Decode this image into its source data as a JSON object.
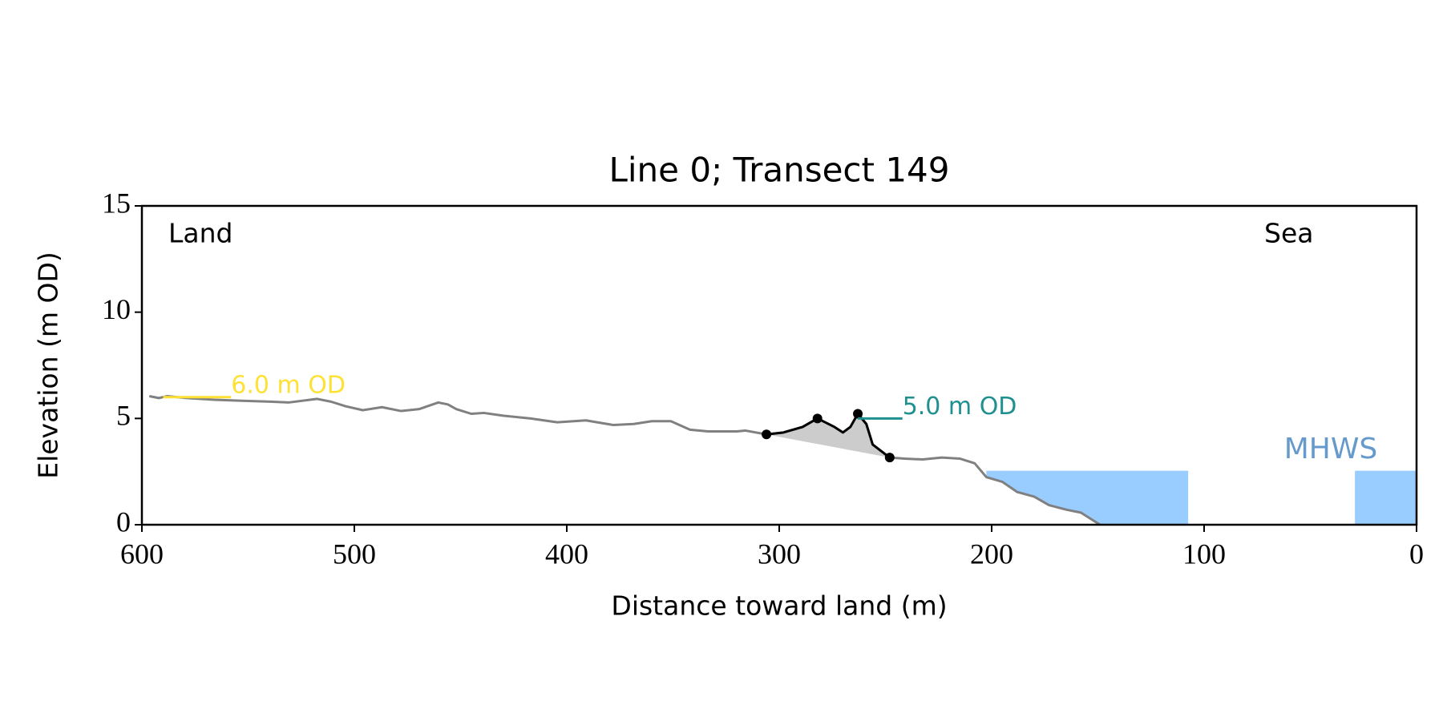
{
  "chart_data": {
    "type": "line",
    "title": "Line 0; Transect 149",
    "xlabel": "Distance toward land (m)",
    "ylabel": "Elevation (m OD)",
    "xlim": [
      600,
      0
    ],
    "ylim": [
      0,
      15
    ],
    "xticks": [
      600,
      500,
      400,
      300,
      200,
      100,
      0
    ],
    "yticks": [
      0,
      5,
      10,
      15
    ],
    "annotations": [
      "Land",
      "Sea"
    ],
    "profile": {
      "color": "#808080",
      "x": [
        596.5,
        592,
        588,
        579,
        566,
        553,
        539.5,
        531,
        517.5,
        511,
        504,
        496,
        487,
        478,
        469.5,
        460.5,
        456,
        452,
        445,
        439,
        430,
        417,
        404.5,
        391,
        378,
        368.5,
        360,
        351,
        342,
        333.5,
        320,
        316,
        306,
        298,
        289,
        282,
        274,
        270,
        266.5,
        263,
        259,
        256,
        248,
        241,
        232.5,
        223.5,
        215,
        208,
        202.5,
        195,
        188,
        180,
        173,
        164.5,
        158,
        149
      ],
      "values": [
        6.05,
        5.96,
        6.05,
        5.96,
        5.88,
        5.83,
        5.79,
        5.75,
        5.92,
        5.79,
        5.57,
        5.39,
        5.53,
        5.35,
        5.44,
        5.75,
        5.66,
        5.44,
        5.22,
        5.26,
        5.13,
        5.0,
        4.82,
        4.91,
        4.69,
        4.74,
        4.87,
        4.87,
        4.47,
        4.39,
        4.39,
        4.43,
        4.25,
        4.34,
        4.6,
        5.0,
        4.6,
        4.34,
        4.6,
        5.22,
        4.74,
        3.77,
        3.16,
        3.11,
        3.07,
        3.16,
        3.11,
        2.89,
        2.24,
        2.02,
        1.54,
        1.32,
        0.92,
        0.7,
        0.57,
        0
      ]
    },
    "dune": {
      "color": "#000000",
      "fill": "#cccccc",
      "x": [
        306,
        298,
        289,
        282,
        274,
        270,
        266.5,
        263,
        259,
        256,
        248
      ],
      "values": [
        4.25,
        4.34,
        4.6,
        5.0,
        4.6,
        4.34,
        4.6,
        5.22,
        4.74,
        3.77,
        3.16
      ]
    },
    "points": {
      "color": "#000000",
      "x": [
        306,
        282,
        263,
        248
      ],
      "values": [
        4.25,
        5.0,
        5.22,
        3.16
      ]
    },
    "mhws": {
      "label": "MHWS",
      "color": "#99ccff",
      "text_color": "#6699cc",
      "level": 2.54,
      "ranges": [
        [
          202.5,
          107.5
        ],
        [
          29,
          0
        ]
      ]
    },
    "levels": [
      {
        "label": "6.0 m OD",
        "value": 6.0,
        "x": [
          590,
          558
        ],
        "color": "#ffe135"
      },
      {
        "label": "5.0 m OD",
        "value": 5.0,
        "x": [
          263,
          242
        ],
        "color": "#1f8f8f"
      }
    ]
  }
}
